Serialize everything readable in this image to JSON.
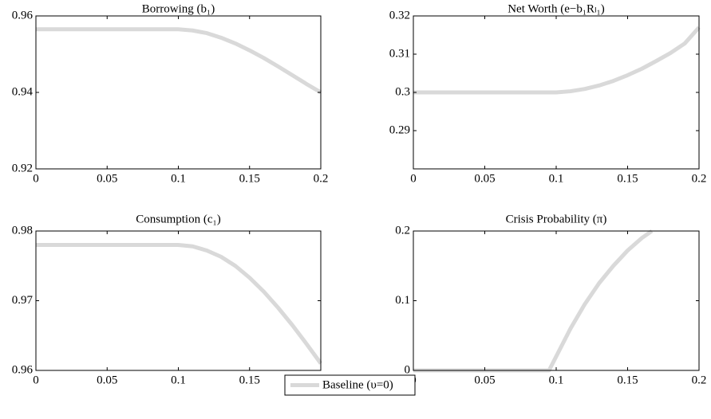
{
  "chart_data": [
    {
      "type": "line",
      "title": "Borrowing (b₁)",
      "x": [
        0,
        0.01,
        0.02,
        0.03,
        0.04,
        0.05,
        0.06,
        0.07,
        0.08,
        0.09,
        0.1,
        0.11,
        0.12,
        0.13,
        0.14,
        0.15,
        0.16,
        0.17,
        0.18,
        0.19,
        0.2
      ],
      "values": [
        0.9565,
        0.9565,
        0.9565,
        0.9565,
        0.9565,
        0.9565,
        0.9565,
        0.9565,
        0.9565,
        0.9565,
        0.9565,
        0.9562,
        0.9555,
        0.9543,
        0.9528,
        0.951,
        0.949,
        0.9468,
        0.9445,
        0.9422,
        0.94
      ],
      "xlim": [
        0,
        0.2
      ],
      "xticks": [
        0,
        0.05,
        0.1,
        0.15,
        0.2
      ],
      "ylim": [
        0.92,
        0.96
      ],
      "yticks": [
        0.92,
        0.94,
        0.96
      ]
    },
    {
      "type": "line",
      "title": "Net Worth (e−b₁Rₗ₁)",
      "x": [
        0,
        0.01,
        0.02,
        0.03,
        0.04,
        0.05,
        0.06,
        0.07,
        0.08,
        0.09,
        0.1,
        0.11,
        0.12,
        0.13,
        0.14,
        0.15,
        0.16,
        0.17,
        0.18,
        0.19,
        0.2
      ],
      "values": [
        0.3,
        0.3,
        0.3,
        0.3,
        0.3,
        0.3,
        0.3,
        0.3,
        0.3,
        0.3,
        0.3,
        0.3003,
        0.3009,
        0.3018,
        0.303,
        0.3045,
        0.3062,
        0.3082,
        0.3103,
        0.3128,
        0.317
      ],
      "xlim": [
        0,
        0.2
      ],
      "xticks": [
        0,
        0.05,
        0.1,
        0.15,
        0.2
      ],
      "ylim": [
        0.28,
        0.32
      ],
      "yticks": [
        0.29,
        0.3,
        0.31,
        0.32
      ]
    },
    {
      "type": "line",
      "title": "Consumption (c₁)",
      "x": [
        0,
        0.01,
        0.02,
        0.03,
        0.04,
        0.05,
        0.06,
        0.07,
        0.08,
        0.09,
        0.1,
        0.11,
        0.12,
        0.13,
        0.14,
        0.15,
        0.16,
        0.17,
        0.18,
        0.19,
        0.2
      ],
      "values": [
        0.978,
        0.978,
        0.978,
        0.978,
        0.978,
        0.978,
        0.978,
        0.978,
        0.978,
        0.978,
        0.978,
        0.9778,
        0.9772,
        0.9763,
        0.975,
        0.9733,
        0.9713,
        0.969,
        0.9665,
        0.9638,
        0.961
      ],
      "xlim": [
        0,
        0.2
      ],
      "xticks": [
        0,
        0.05,
        0.1,
        0.15,
        0.2
      ],
      "ylim": [
        0.96,
        0.98
      ],
      "yticks": [
        0.96,
        0.97,
        0.98
      ]
    },
    {
      "type": "line",
      "title": "Crisis Probability (π)",
      "x": [
        0,
        0.05,
        0.09,
        0.095,
        0.1,
        0.11,
        0.12,
        0.13,
        0.14,
        0.15,
        0.16,
        0.167
      ],
      "values": [
        0,
        0,
        0,
        0,
        0.02,
        0.06,
        0.095,
        0.125,
        0.15,
        0.172,
        0.19,
        0.2
      ],
      "xlim": [
        0,
        0.2
      ],
      "xticks": [
        0,
        0.05,
        0.1,
        0.15,
        0.2
      ],
      "ylim": [
        0,
        0.2
      ],
      "yticks": [
        0,
        0.1,
        0.2
      ]
    }
  ],
  "legend": {
    "name": "Baseline (υ=0)",
    "color": "#d9d9d9",
    "position": "bottom"
  }
}
